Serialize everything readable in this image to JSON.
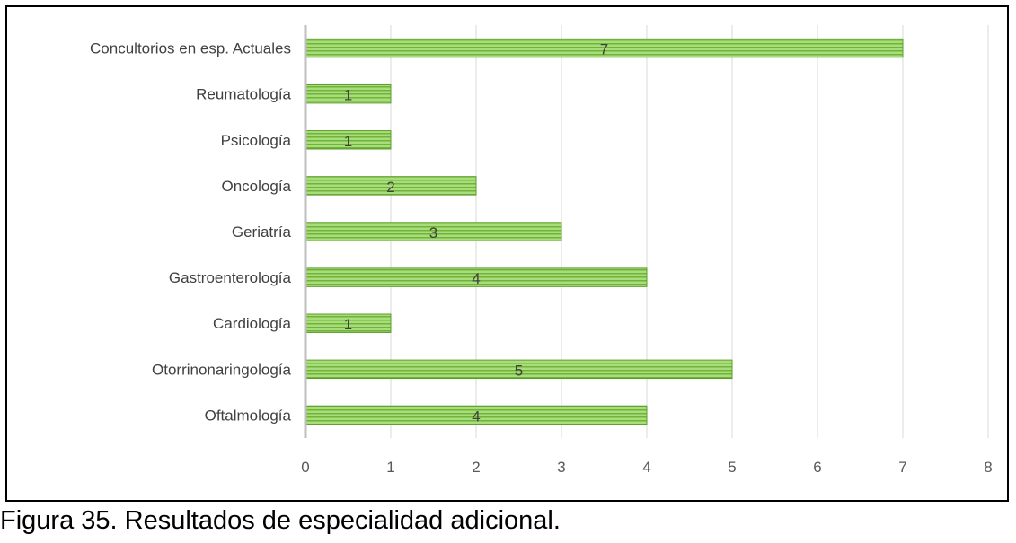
{
  "caption": "Figura 35. Resultados de especialidad adicional.",
  "chart_data": {
    "type": "bar",
    "orientation": "horizontal",
    "categories": [
      "Concultorios en esp. Actuales",
      "Reumatología",
      "Psicología",
      "Oncología",
      "Geriatría",
      "Gastroenterología",
      "Cardiología",
      "Otorrinonaringología",
      "Oftalmología"
    ],
    "values": [
      7,
      1,
      1,
      2,
      3,
      4,
      1,
      5,
      4
    ],
    "data_labels": true,
    "xlim": [
      0,
      8
    ],
    "xticks": [
      0,
      1,
      2,
      3,
      4,
      5,
      6,
      7,
      8
    ],
    "grid": "vertical",
    "legend": "none",
    "bar_color": "#8fd14f",
    "bar_stripe_color": "#5a9e2a",
    "grid_color": "#d9d9d9",
    "axis_color": "#bfbfbf"
  }
}
